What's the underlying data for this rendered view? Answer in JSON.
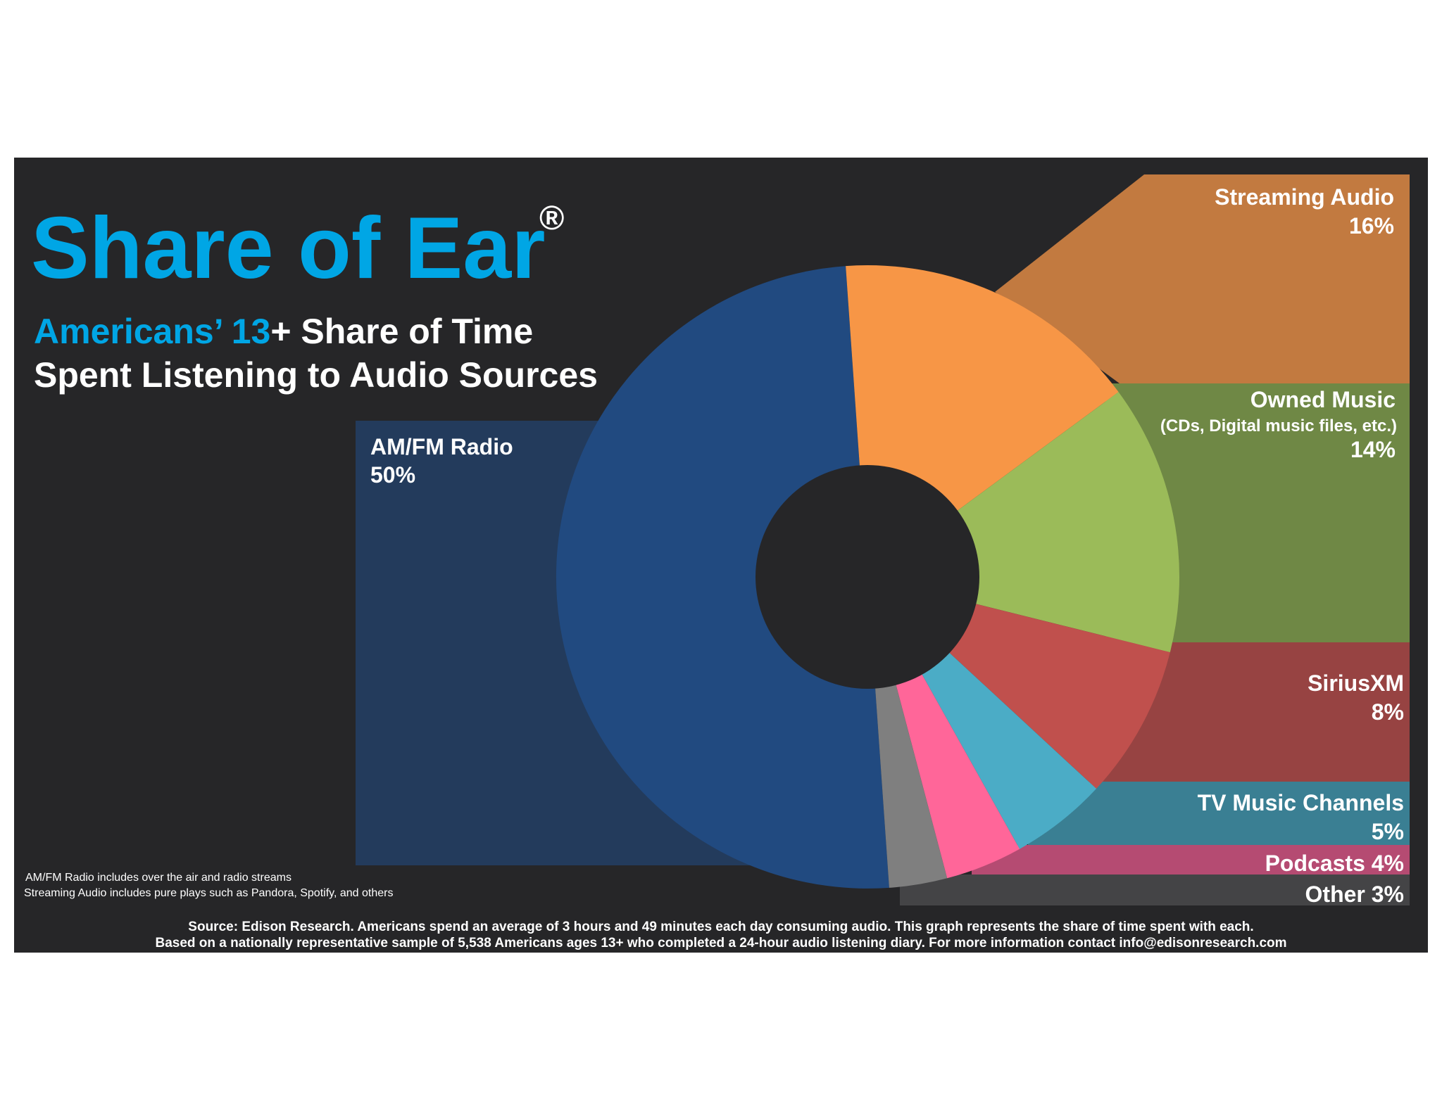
{
  "title": "Share of Ear",
  "title_mark": "®",
  "subtitle": {
    "line1_blue": "Americans’ 13",
    "line1_white": "+ Share of Time",
    "line2": "Spent Listening to Audio Sources"
  },
  "notes": [
    "AM/FM Radio includes over the air and radio streams",
    "Streaming Audio includes pure plays such as Pandora, Spotify, and others"
  ],
  "source": [
    "Source: Edison Research.  Americans spend an average of 3 hours and 49 minutes each day consuming audio.  This graph represents the share of time spent with each.",
    "Based on a nationally representative sample of 5,538 Americans ages 13+ who completed a 24-hour audio listening diary.  For more information contact info@edisonresearch.com"
  ],
  "colors": {
    "background": "#262628",
    "title": "#00a6e5"
  },
  "chart_data": {
    "type": "pie",
    "style": "donut",
    "slices": [
      {
        "label": "AM/FM Radio",
        "value": 50,
        "value_label": "50%",
        "color": "#214a80",
        "panel_color": "#233b5c"
      },
      {
        "label": "Streaming Audio",
        "value": 16,
        "value_label": "16%",
        "color": "#f79646",
        "panel_color": "#c27a40"
      },
      {
        "label": "Owned Music",
        "sublabel": "(CDs, Digital music files, etc.)",
        "value": 14,
        "value_label": "14%",
        "color": "#9bbb59",
        "panel_color": "#6f8845"
      },
      {
        "label": "SiriusXM",
        "value": 8,
        "value_label": "8%",
        "color": "#c0504d",
        "panel_color": "#974342"
      },
      {
        "label": "TV Music Channels",
        "value": 5,
        "value_label": "5%",
        "color": "#4bacc6",
        "panel_color": "#3a7f93"
      },
      {
        "label": "Podcasts",
        "value": 4,
        "value_label": "4%",
        "color": "#ff6699",
        "panel_color": "#b54b72"
      },
      {
        "label": "Other",
        "value": 3,
        "value_label": "3%",
        "color": "#7f7f7f",
        "panel_color": "#444446"
      }
    ]
  }
}
